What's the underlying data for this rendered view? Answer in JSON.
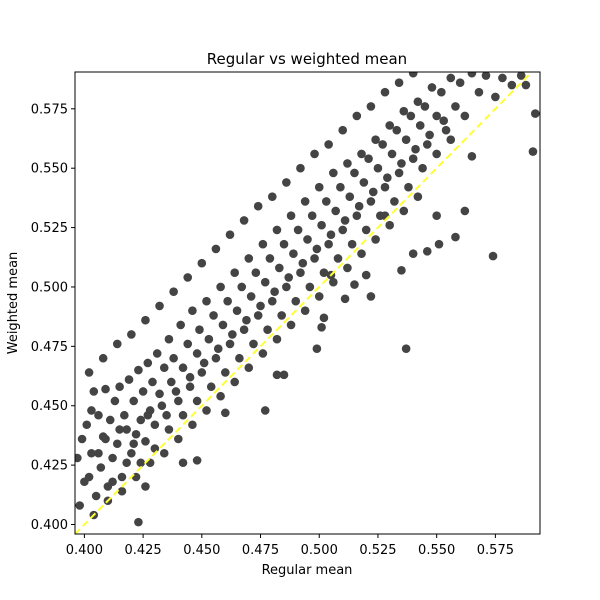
{
  "chart_data": {
    "type": "scatter",
    "title": "Regular vs weighted mean",
    "xlabel": "Regular mean",
    "ylabel": "Weighted mean",
    "xlim": [
      0.396,
      0.594
    ],
    "ylim": [
      0.396,
      0.5905
    ],
    "x_ticks": [
      "0.400",
      "0.425",
      "0.450",
      "0.475",
      "0.500",
      "0.525",
      "0.550",
      "0.575"
    ],
    "y_ticks": [
      "0.400",
      "0.425",
      "0.450",
      "0.475",
      "0.500",
      "0.525",
      "0.550",
      "0.575"
    ],
    "grid": false,
    "point_color": "#444444",
    "reference_line": {
      "from": [
        0.396,
        0.396
      ],
      "to": [
        0.59,
        0.59
      ],
      "color": "#ffff33",
      "style": "dashed"
    },
    "series": [
      {
        "points": [
          [
            0.398,
            0.408
          ],
          [
            0.399,
            0.436
          ],
          [
            0.401,
            0.442
          ],
          [
            0.402,
            0.42
          ],
          [
            0.403,
            0.43
          ],
          [
            0.404,
            0.456
          ],
          [
            0.405,
            0.412
          ],
          [
            0.406,
            0.446
          ],
          [
            0.407,
            0.424
          ],
          [
            0.408,
            0.437
          ],
          [
            0.409,
            0.457
          ],
          [
            0.41,
            0.416
          ],
          [
            0.411,
            0.444
          ],
          [
            0.412,
            0.428
          ],
          [
            0.413,
            0.452
          ],
          [
            0.414,
            0.434
          ],
          [
            0.415,
            0.458
          ],
          [
            0.416,
            0.42
          ],
          [
            0.417,
            0.446
          ],
          [
            0.418,
            0.44
          ],
          [
            0.419,
            0.461
          ],
          [
            0.42,
            0.43
          ],
          [
            0.421,
            0.452
          ],
          [
            0.422,
            0.438
          ],
          [
            0.423,
            0.465
          ],
          [
            0.424,
            0.444
          ],
          [
            0.425,
            0.456
          ],
          [
            0.426,
            0.435
          ],
          [
            0.427,
            0.468
          ],
          [
            0.428,
            0.448
          ],
          [
            0.429,
            0.46
          ],
          [
            0.43,
            0.442
          ],
          [
            0.431,
            0.472
          ],
          [
            0.432,
            0.455
          ],
          [
            0.434,
            0.466
          ],
          [
            0.435,
            0.446
          ],
          [
            0.436,
            0.478
          ],
          [
            0.437,
            0.46
          ],
          [
            0.438,
            0.47
          ],
          [
            0.44,
            0.452
          ],
          [
            0.441,
            0.484
          ],
          [
            0.442,
            0.466
          ],
          [
            0.444,
            0.476
          ],
          [
            0.445,
            0.458
          ],
          [
            0.446,
            0.49
          ],
          [
            0.448,
            0.472
          ],
          [
            0.449,
            0.482
          ],
          [
            0.45,
            0.464
          ],
          [
            0.452,
            0.494
          ],
          [
            0.453,
            0.478
          ],
          [
            0.455,
            0.488
          ],
          [
            0.456,
            0.47
          ],
          [
            0.458,
            0.5
          ],
          [
            0.459,
            0.484
          ],
          [
            0.461,
            0.494
          ],
          [
            0.462,
            0.476
          ],
          [
            0.464,
            0.506
          ],
          [
            0.465,
            0.49
          ],
          [
            0.467,
            0.5
          ],
          [
            0.468,
            0.482
          ],
          [
            0.47,
            0.512
          ],
          [
            0.471,
            0.496
          ],
          [
            0.473,
            0.506
          ],
          [
            0.474,
            0.488
          ],
          [
            0.476,
            0.518
          ],
          [
            0.477,
            0.502
          ],
          [
            0.479,
            0.512
          ],
          [
            0.48,
            0.494
          ],
          [
            0.482,
            0.524
          ],
          [
            0.483,
            0.508
          ],
          [
            0.485,
            0.518
          ],
          [
            0.486,
            0.5
          ],
          [
            0.488,
            0.53
          ],
          [
            0.489,
            0.514
          ],
          [
            0.491,
            0.524
          ],
          [
            0.492,
            0.506
          ],
          [
            0.494,
            0.536
          ],
          [
            0.495,
            0.52
          ],
          [
            0.497,
            0.53
          ],
          [
            0.498,
            0.512
          ],
          [
            0.5,
            0.542
          ],
          [
            0.501,
            0.526
          ],
          [
            0.503,
            0.536
          ],
          [
            0.504,
            0.518
          ],
          [
            0.506,
            0.548
          ],
          [
            0.507,
            0.532
          ],
          [
            0.509,
            0.542
          ],
          [
            0.51,
            0.524
          ],
          [
            0.512,
            0.552
          ],
          [
            0.513,
            0.538
          ],
          [
            0.515,
            0.548
          ],
          [
            0.516,
            0.53
          ],
          [
            0.518,
            0.556
          ],
          [
            0.519,
            0.544
          ],
          [
            0.521,
            0.554
          ],
          [
            0.522,
            0.536
          ],
          [
            0.524,
            0.562
          ],
          [
            0.525,
            0.55
          ],
          [
            0.527,
            0.56
          ],
          [
            0.528,
            0.542
          ],
          [
            0.53,
            0.568
          ],
          [
            0.531,
            0.556
          ],
          [
            0.533,
            0.566
          ],
          [
            0.534,
            0.548
          ],
          [
            0.536,
            0.574
          ],
          [
            0.537,
            0.562
          ],
          [
            0.539,
            0.572
          ],
          [
            0.54,
            0.554
          ],
          [
            0.542,
            0.578
          ],
          [
            0.543,
            0.568
          ],
          [
            0.545,
            0.576
          ],
          [
            0.546,
            0.56
          ],
          [
            0.548,
            0.584
          ],
          [
            0.55,
            0.572
          ],
          [
            0.552,
            0.582
          ],
          [
            0.554,
            0.566
          ],
          [
            0.556,
            0.588
          ],
          [
            0.558,
            0.576
          ],
          [
            0.56,
            0.586
          ],
          [
            0.562,
            0.572
          ],
          [
            0.565,
            0.59
          ],
          [
            0.568,
            0.582
          ],
          [
            0.571,
            0.589
          ],
          [
            0.575,
            0.58
          ],
          [
            0.578,
            0.588
          ],
          [
            0.582,
            0.585
          ],
          [
            0.586,
            0.589
          ],
          [
            0.397,
            0.428
          ],
          [
            0.4,
            0.418
          ],
          [
            0.403,
            0.448
          ],
          [
            0.406,
            0.43
          ],
          [
            0.409,
            0.436
          ],
          [
            0.412,
            0.418
          ],
          [
            0.415,
            0.44
          ],
          [
            0.418,
            0.426
          ],
          [
            0.421,
            0.434
          ],
          [
            0.424,
            0.426
          ],
          [
            0.427,
            0.446
          ],
          [
            0.43,
            0.432
          ],
          [
            0.433,
            0.45
          ],
          [
            0.436,
            0.44
          ],
          [
            0.439,
            0.456
          ],
          [
            0.442,
            0.446
          ],
          [
            0.445,
            0.462
          ],
          [
            0.448,
            0.452
          ],
          [
            0.451,
            0.468
          ],
          [
            0.454,
            0.458
          ],
          [
            0.457,
            0.474
          ],
          [
            0.46,
            0.464
          ],
          [
            0.463,
            0.48
          ],
          [
            0.466,
            0.47
          ],
          [
            0.469,
            0.486
          ],
          [
            0.472,
            0.476
          ],
          [
            0.475,
            0.492
          ],
          [
            0.478,
            0.482
          ],
          [
            0.481,
            0.498
          ],
          [
            0.484,
            0.488
          ],
          [
            0.487,
            0.504
          ],
          [
            0.49,
            0.494
          ],
          [
            0.493,
            0.51
          ],
          [
            0.496,
            0.5
          ],
          [
            0.499,
            0.516
          ],
          [
            0.502,
            0.506
          ],
          [
            0.505,
            0.522
          ],
          [
            0.508,
            0.512
          ],
          [
            0.511,
            0.528
          ],
          [
            0.514,
            0.518
          ],
          [
            0.517,
            0.534
          ],
          [
            0.52,
            0.524
          ],
          [
            0.523,
            0.54
          ],
          [
            0.526,
            0.53
          ],
          [
            0.529,
            0.546
          ],
          [
            0.532,
            0.536
          ],
          [
            0.535,
            0.552
          ],
          [
            0.538,
            0.542
          ],
          [
            0.541,
            0.558
          ],
          [
            0.544,
            0.55
          ],
          [
            0.547,
            0.564
          ],
          [
            0.55,
            0.556
          ],
          [
            0.553,
            0.57
          ],
          [
            0.556,
            0.562
          ],
          [
            0.402,
            0.464
          ],
          [
            0.408,
            0.47
          ],
          [
            0.414,
            0.476
          ],
          [
            0.42,
            0.48
          ],
          [
            0.426,
            0.486
          ],
          [
            0.432,
            0.492
          ],
          [
            0.438,
            0.498
          ],
          [
            0.444,
            0.504
          ],
          [
            0.45,
            0.51
          ],
          [
            0.456,
            0.516
          ],
          [
            0.462,
            0.522
          ],
          [
            0.468,
            0.528
          ],
          [
            0.474,
            0.534
          ],
          [
            0.48,
            0.538
          ],
          [
            0.486,
            0.544
          ],
          [
            0.492,
            0.55
          ],
          [
            0.498,
            0.556
          ],
          [
            0.504,
            0.56
          ],
          [
            0.51,
            0.566
          ],
          [
            0.516,
            0.572
          ],
          [
            0.522,
            0.576
          ],
          [
            0.528,
            0.582
          ],
          [
            0.534,
            0.586
          ],
          [
            0.54,
            0.59
          ],
          [
            0.404,
            0.404
          ],
          [
            0.41,
            0.41
          ],
          [
            0.416,
            0.414
          ],
          [
            0.422,
            0.42
          ],
          [
            0.428,
            0.426
          ],
          [
            0.434,
            0.43
          ],
          [
            0.44,
            0.436
          ],
          [
            0.446,
            0.442
          ],
          [
            0.452,
            0.448
          ],
          [
            0.458,
            0.454
          ],
          [
            0.464,
            0.46
          ],
          [
            0.47,
            0.466
          ],
          [
            0.476,
            0.472
          ],
          [
            0.482,
            0.478
          ],
          [
            0.488,
            0.484
          ],
          [
            0.494,
            0.49
          ],
          [
            0.5,
            0.496
          ],
          [
            0.506,
            0.502
          ],
          [
            0.512,
            0.508
          ],
          [
            0.518,
            0.514
          ],
          [
            0.524,
            0.52
          ],
          [
            0.53,
            0.526
          ],
          [
            0.536,
            0.532
          ],
          [
            0.542,
            0.538
          ],
          [
            0.423,
            0.401
          ],
          [
            0.426,
            0.416
          ],
          [
            0.442,
            0.426
          ],
          [
            0.448,
            0.427
          ],
          [
            0.46,
            0.447
          ],
          [
            0.477,
            0.448
          ],
          [
            0.482,
            0.463
          ],
          [
            0.485,
            0.463
          ],
          [
            0.499,
            0.474
          ],
          [
            0.501,
            0.483
          ],
          [
            0.502,
            0.487
          ],
          [
            0.511,
            0.495
          ],
          [
            0.522,
            0.496
          ],
          [
            0.528,
            0.53
          ],
          [
            0.537,
            0.474
          ],
          [
            0.54,
            0.514
          ],
          [
            0.546,
            0.515
          ],
          [
            0.55,
            0.53
          ],
          [
            0.551,
            0.518
          ],
          [
            0.558,
            0.521
          ],
          [
            0.562,
            0.532
          ],
          [
            0.565,
            0.555
          ],
          [
            0.574,
            0.513
          ],
          [
            0.588,
            0.585
          ],
          [
            0.591,
            0.557
          ],
          [
            0.592,
            0.573
          ],
          [
            0.535,
            0.507
          ],
          [
            0.52,
            0.505
          ],
          [
            0.515,
            0.501
          ],
          [
            0.505,
            0.505
          ]
        ]
      }
    ]
  }
}
